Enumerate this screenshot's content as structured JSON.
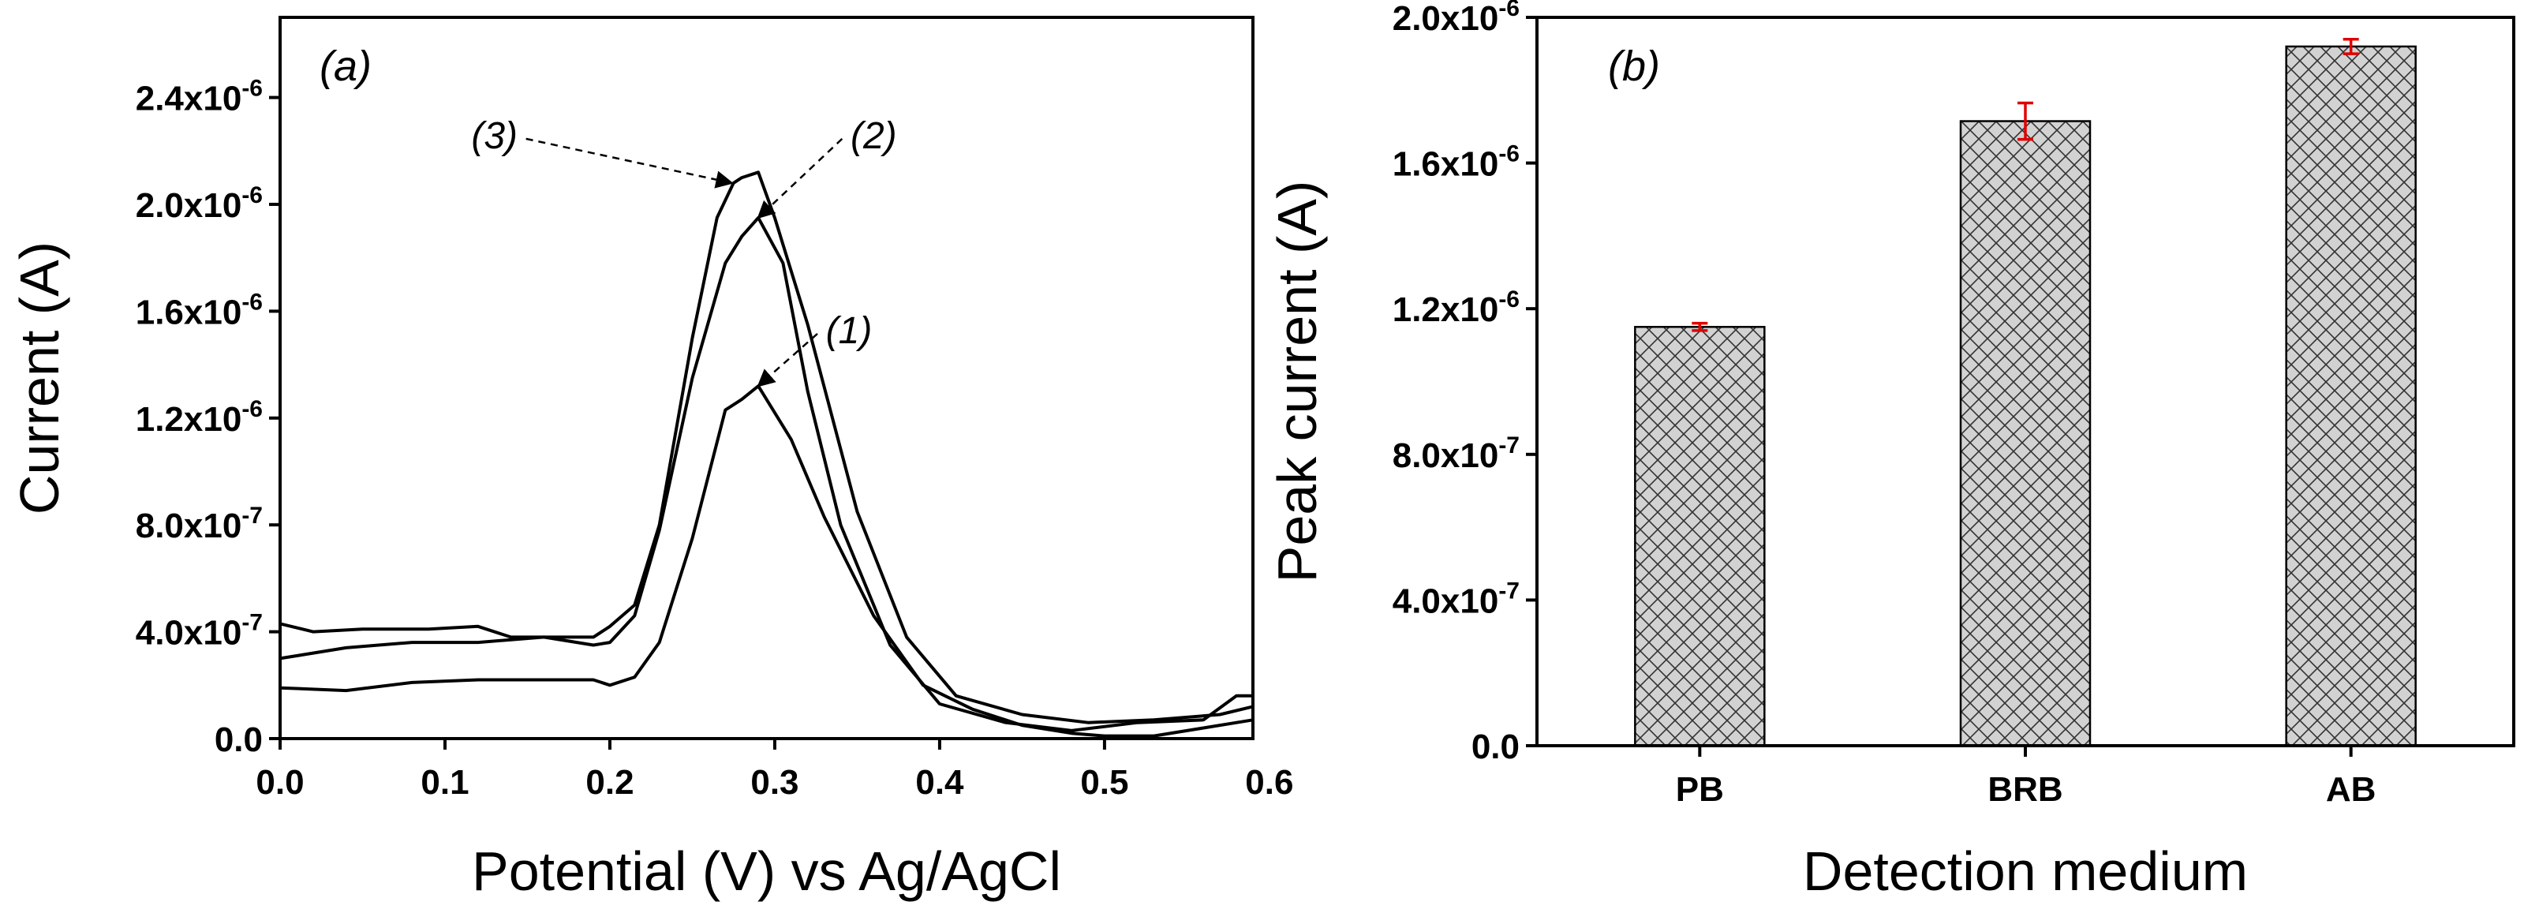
{
  "chart_data": [
    {
      "id": "panel-a",
      "type": "line",
      "panel_label": "(a)",
      "xlabel": "Potential (V) vs Ag/AgCl",
      "ylabel": "Current (A)",
      "xlim": [
        0,
        0.59
      ],
      "ylim": [
        0,
        2.7e-06
      ],
      "xticks": [
        0.0,
        0.1,
        0.2,
        0.3,
        0.4,
        0.5,
        0.6
      ],
      "xtick_labels": [
        "0.0",
        "0.1",
        "0.2",
        "0.3",
        "0.4",
        "0.5",
        "0.6"
      ],
      "yticks": [
        0,
        4e-07,
        8e-07,
        1.2e-06,
        1.6e-06,
        2e-06,
        2.4e-06
      ],
      "ytick_labels": [
        {
          "mantissa": "0.0",
          "exp": ""
        },
        {
          "mantissa": "4.0x10",
          "exp": "-7"
        },
        {
          "mantissa": "8.0x10",
          "exp": "-7"
        },
        {
          "mantissa": "1.2x10",
          "exp": "-6"
        },
        {
          "mantissa": "1.6x10",
          "exp": "-6"
        },
        {
          "mantissa": "2.0x10",
          "exp": "-6"
        },
        {
          "mantissa": "2.4x10",
          "exp": "-6"
        }
      ],
      "series": [
        {
          "name": "(1)",
          "x": [
            0.0,
            0.04,
            0.08,
            0.12,
            0.16,
            0.19,
            0.2,
            0.215,
            0.23,
            0.25,
            0.27,
            0.28,
            0.29,
            0.31,
            0.33,
            0.36,
            0.39,
            0.42,
            0.45,
            0.48,
            0.5,
            0.53,
            0.56,
            0.59
          ],
          "y": [
            1.9e-07,
            1.8e-07,
            2.1e-07,
            2.2e-07,
            2.2e-07,
            2.2e-07,
            2e-07,
            2.3e-07,
            3.6e-07,
            7.5e-07,
            1.23e-06,
            1.27e-06,
            1.32e-06,
            1.12e-06,
            8.3e-07,
            4.6e-07,
            2e-07,
            1.1e-07,
            5e-08,
            2e-08,
            1e-08,
            1e-08,
            4e-08,
            7e-08
          ]
        },
        {
          "name": "(2)",
          "x": [
            0.0,
            0.04,
            0.08,
            0.12,
            0.16,
            0.19,
            0.2,
            0.215,
            0.23,
            0.25,
            0.27,
            0.28,
            0.29,
            0.305,
            0.32,
            0.34,
            0.37,
            0.4,
            0.44,
            0.48,
            0.52,
            0.56,
            0.58,
            0.59
          ],
          "y": [
            3e-07,
            3.4e-07,
            3.6e-07,
            3.6e-07,
            3.8e-07,
            3.5e-07,
            3.6e-07,
            4.6e-07,
            7.8e-07,
            1.35e-06,
            1.78e-06,
            1.88e-06,
            1.95e-06,
            1.78e-06,
            1.3e-06,
            8e-07,
            3.5e-07,
            1.3e-07,
            6e-08,
            3e-08,
            6e-08,
            7e-08,
            1.6e-07,
            1.6e-07
          ]
        },
        {
          "name": "(3)",
          "x": [
            0.0,
            0.02,
            0.05,
            0.09,
            0.12,
            0.14,
            0.17,
            0.19,
            0.2,
            0.215,
            0.23,
            0.25,
            0.265,
            0.275,
            0.28,
            0.29,
            0.3,
            0.32,
            0.35,
            0.38,
            0.41,
            0.45,
            0.49,
            0.53,
            0.57,
            0.59
          ],
          "y": [
            4.3e-07,
            4e-07,
            4.1e-07,
            4.1e-07,
            4.2e-07,
            3.8e-07,
            3.8e-07,
            3.8e-07,
            4.2e-07,
            5e-07,
            8e-07,
            1.5e-06,
            1.95e-06,
            2.08e-06,
            2.1e-06,
            2.12e-06,
            1.95e-06,
            1.55e-06,
            8.5e-07,
            3.8e-07,
            1.6e-07,
            9e-08,
            6e-08,
            7e-08,
            9e-08,
            1.2e-07
          ]
        }
      ],
      "annotations": [
        {
          "text": "(3)",
          "label_at": [
            0.13,
            2.21e-06
          ],
          "arrow_to": [
            0.274,
            2.08e-06
          ]
        },
        {
          "text": "(2)",
          "label_at": [
            0.36,
            2.21e-06
          ],
          "arrow_to": [
            0.29,
            1.95e-06
          ]
        },
        {
          "text": "(1)",
          "label_at": [
            0.345,
            1.48e-06
          ],
          "arrow_to": [
            0.29,
            1.32e-06
          ]
        }
      ]
    },
    {
      "id": "panel-b",
      "type": "bar",
      "panel_label": "(b)",
      "xlabel": "Detection medium",
      "ylabel": "Peak current (A)",
      "categories": [
        "PB",
        "BRB",
        "AB"
      ],
      "values": [
        1.15e-06,
        1.715e-06,
        1.92e-06
      ],
      "errors": [
        1e-08,
        5e-08,
        2e-08
      ],
      "ylim": [
        0,
        2e-06
      ],
      "yticks": [
        0,
        4e-07,
        8e-07,
        1.2e-06,
        1.6e-06,
        2e-06
      ],
      "ytick_labels": [
        {
          "mantissa": "0.0",
          "exp": ""
        },
        {
          "mantissa": "4.0x10",
          "exp": "-7"
        },
        {
          "mantissa": "8.0x10",
          "exp": "-7"
        },
        {
          "mantissa": "1.2x10",
          "exp": "-6"
        },
        {
          "mantissa": "1.6x10",
          "exp": "-6"
        },
        {
          "mantissa": "2.0x10",
          "exp": "-6"
        }
      ],
      "bar_pattern": "cross-hatch",
      "colors": {
        "bar_fill": "#d2d2d2",
        "hatch": "#333333",
        "error_bar": "#e00000"
      }
    }
  ]
}
